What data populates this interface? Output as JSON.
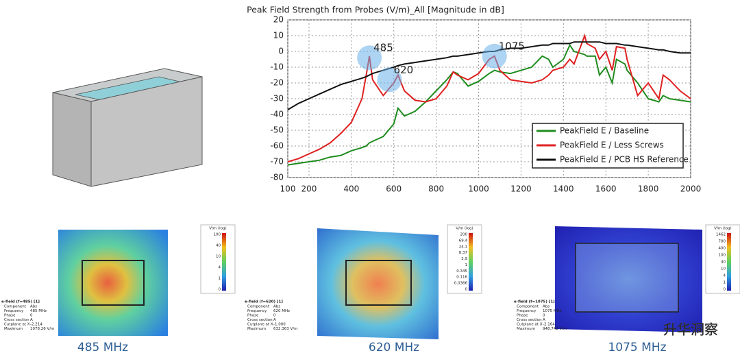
{
  "chart_data": {
    "type": "line",
    "title": "Peak Field Strength from Probes (V/m)_All [Magnitude in dB]",
    "x": [
      100,
      150,
      200,
      250,
      300,
      350,
      400,
      450,
      470,
      485,
      500,
      550,
      600,
      620,
      650,
      700,
      750,
      800,
      850,
      880,
      900,
      950,
      1000,
      1050,
      1075,
      1100,
      1150,
      1200,
      1250,
      1300,
      1330,
      1350,
      1400,
      1430,
      1450,
      1500,
      1510,
      1550,
      1570,
      1600,
      1630,
      1650,
      1690,
      1700,
      1750,
      1800,
      1850,
      1870,
      1900,
      1950,
      2000
    ],
    "series": [
      {
        "name": "PeakField E / Baseline",
        "color": "#1e8c1e",
        "values": [
          -72,
          -71,
          -70,
          -69,
          -67,
          -66,
          -63,
          -61,
          -60,
          -58,
          -57,
          -54,
          -46,
          -36,
          -41,
          -38,
          -32,
          -25,
          -18,
          -13,
          -14,
          -22,
          -19,
          -14,
          -12,
          -13,
          -14,
          -12,
          -10,
          -3,
          -5,
          -10,
          -5,
          4,
          0,
          -2,
          -3,
          -3,
          -15,
          -10,
          -20,
          -5,
          -8,
          -12,
          -20,
          -30,
          -32,
          -28,
          -30,
          -31,
          -32
        ]
      },
      {
        "name": "PeakField E / Less Screws",
        "color": "#e02020",
        "values": [
          -70,
          -68,
          -65,
          -62,
          -58,
          -52,
          -45,
          -30,
          -15,
          -3,
          -18,
          -28,
          -20,
          -15,
          -25,
          -31,
          -32,
          -30,
          -22,
          -13,
          -15,
          -18,
          -14,
          -5,
          -3,
          -12,
          -18,
          -19,
          -20,
          -18,
          -15,
          -12,
          -10,
          -5,
          -8,
          10,
          5,
          2,
          -5,
          0,
          -12,
          3,
          2,
          -5,
          -28,
          -20,
          -30,
          -15,
          -18,
          -25,
          -30
        ]
      },
      {
        "name": "PeakField E / PCB HS Reference",
        "color": "#111111",
        "values": [
          -37,
          -33,
          -30,
          -27,
          -24,
          -21,
          -19,
          -17,
          -16,
          -15,
          -14,
          -12,
          -10,
          -9,
          -8,
          -7,
          -6,
          -5,
          -4,
          -3,
          -3,
          -2,
          -1,
          0,
          0,
          1,
          2,
          2,
          3,
          4,
          4,
          5,
          5,
          5,
          6,
          6,
          6,
          6,
          6,
          5,
          5,
          5,
          4,
          4,
          3,
          2,
          1,
          1,
          0,
          -1,
          -1
        ]
      }
    ],
    "annotations": [
      {
        "text": "485",
        "x": 485,
        "y": -4
      },
      {
        "text": "620",
        "x": 580,
        "y": -18
      },
      {
        "text": "1075",
        "x": 1075,
        "y": -3
      }
    ],
    "xlim": [
      100,
      2000
    ],
    "xticks": [
      100,
      200,
      400,
      600,
      800,
      1000,
      1200,
      1400,
      1600,
      1800,
      2000
    ],
    "ylim": [
      -80,
      20
    ],
    "yticks": [
      -80,
      -70,
      -60,
      -50,
      -40,
      -30,
      -20,
      -10,
      0,
      10,
      20
    ],
    "grid": true,
    "legend": "lower right"
  },
  "panels": [
    {
      "caption": "485 MHz",
      "unit": "V/m (log)",
      "scale": [
        "100",
        "40",
        "10",
        "4",
        "1",
        "0"
      ],
      "info_title": "e-field (f=485) [1]",
      "info": [
        [
          "Component",
          "Abs"
        ],
        [
          "Frequency",
          "485 MHz"
        ],
        [
          "Phase",
          "0"
        ],
        [
          "Cross section",
          "A"
        ],
        [
          "Cutplane at X",
          "-2.214"
        ],
        [
          "Maximum",
          "1078.26 V/m"
        ]
      ]
    },
    {
      "caption": "620 MHz",
      "unit": "V/m (log)",
      "scale": [
        "200",
        "69.4",
        "24.1",
        "8.37",
        "2.9",
        "1",
        "0.345",
        "0.116",
        "0.0366",
        "0"
      ],
      "info_title": "e-field (f=620) [1]",
      "info": [
        [
          "Component",
          "Abs"
        ],
        [
          "Frequency",
          "620 MHz"
        ],
        [
          "Phase",
          "0"
        ],
        [
          "Cross section",
          "A"
        ],
        [
          "Cutplane at X",
          "-1.000"
        ],
        [
          "Maximum",
          "632.363 V/m"
        ]
      ]
    },
    {
      "caption": "1075 MHz",
      "unit": "V/m (log)",
      "scale": [
        "1462",
        "700",
        "400",
        "100",
        "40",
        "10",
        "4",
        "1",
        "0"
      ],
      "info_title": "e-field (f=1075) [1]",
      "info": [
        [
          "Component",
          "Abs"
        ],
        [
          "Frequency",
          "1075 MHz"
        ],
        [
          "Phase",
          "0"
        ],
        [
          "Cross section",
          "A"
        ],
        [
          "Cutplane at X",
          "-2.164"
        ],
        [
          "Maximum",
          "948.742 V/m"
        ]
      ]
    }
  ],
  "watermark": "升华洞察"
}
